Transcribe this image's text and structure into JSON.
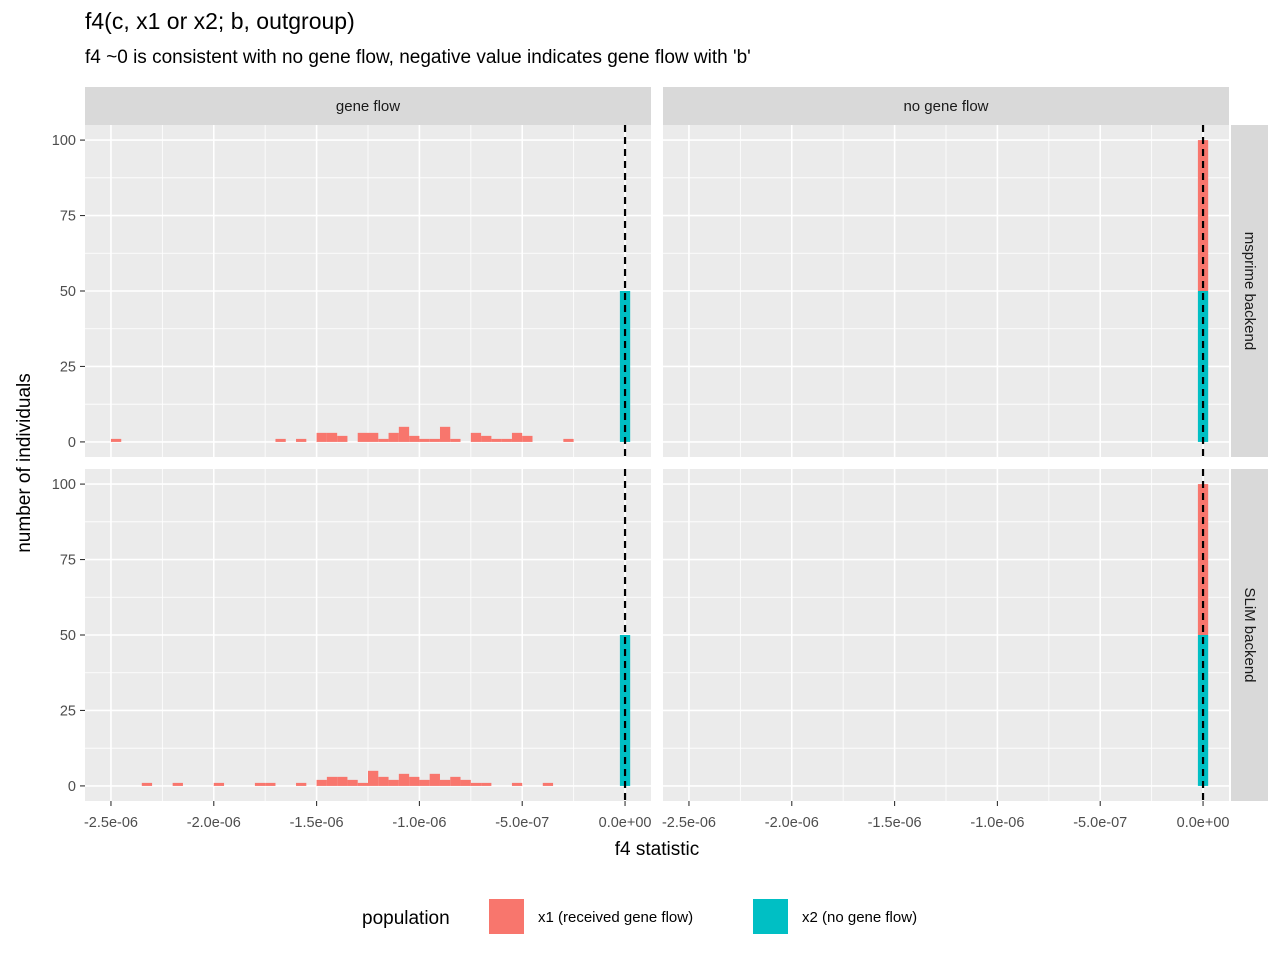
{
  "title": "f4(c, x1 or x2; b, outgroup)",
  "subtitle": "f4 ~0 is consistent with no gene flow, negative value indicates gene flow with 'b'",
  "chart_data": {
    "type": "bar",
    "stacked": true,
    "xlabel": "f4 statistic",
    "ylabel": "number of individuals",
    "xlim": [
      -2.5e-06,
      0
    ],
    "ylim": [
      0,
      100
    ],
    "x_ticks": [
      "-2.5e-06",
      "-2.0e-06",
      "-1.5e-06",
      "-1.0e-06",
      "-5.0e-07",
      "0.0e+00"
    ],
    "y_ticks": [
      "0",
      "25",
      "50",
      "75",
      "100"
    ],
    "column_facets": [
      "gene flow",
      "no gene flow"
    ],
    "row_facets": [
      "msprime backend",
      "SLiM backend"
    ],
    "reference_line_x": 0,
    "bin_width": 5e-08,
    "legend": {
      "title": "population",
      "position": "bottom",
      "entries": [
        {
          "label": "x1 (received gene flow)",
          "color": "#F8766D"
        },
        {
          "label": "x2 (no gene flow)",
          "color": "#00BFC4"
        }
      ]
    },
    "panels": [
      {
        "row": "msprime backend",
        "column": "gene flow",
        "series": [
          {
            "name": "x1 (received gene flow)",
            "x": [
              -2.475e-06,
              -1.675e-06,
              -1.575e-06,
              -1.475e-06,
              -1.425e-06,
              -1.375e-06,
              -1.275e-06,
              -1.225e-06,
              -1.175e-06,
              -1.125e-06,
              -1.075e-06,
              -1.025e-06,
              -9.75e-07,
              -9.25e-07,
              -8.75e-07,
              -8.25e-07,
              -7.25e-07,
              -6.75e-07,
              -6.25e-07,
              -5.75e-07,
              -5.25e-07,
              -4.75e-07,
              -2.75e-07
            ],
            "values": [
              1,
              1,
              1,
              3,
              3,
              2,
              3,
              3,
              1,
              3,
              5,
              2,
              1,
              1,
              5,
              1,
              3,
              2,
              1,
              1,
              3,
              2,
              1
            ]
          },
          {
            "name": "x2 (no gene flow)",
            "x": [
              0
            ],
            "values": [
              50
            ]
          }
        ]
      },
      {
        "row": "msprime backend",
        "column": "no gene flow",
        "series": [
          {
            "name": "x1 (received gene flow)",
            "x": [
              0
            ],
            "values": [
              50
            ]
          },
          {
            "name": "x2 (no gene flow)",
            "x": [
              0
            ],
            "values": [
              50
            ]
          }
        ]
      },
      {
        "row": "SLiM backend",
        "column": "gene flow",
        "series": [
          {
            "name": "x1 (received gene flow)",
            "x": [
              -2.325e-06,
              -2.175e-06,
              -1.975e-06,
              -1.775e-06,
              -1.725e-06,
              -1.575e-06,
              -1.475e-06,
              -1.425e-06,
              -1.375e-06,
              -1.325e-06,
              -1.275e-06,
              -1.225e-06,
              -1.175e-06,
              -1.125e-06,
              -1.075e-06,
              -1.025e-06,
              -9.75e-07,
              -9.25e-07,
              -8.75e-07,
              -8.25e-07,
              -7.75e-07,
              -7.25e-07,
              -6.75e-07,
              -5.25e-07,
              -3.75e-07
            ],
            "values": [
              1,
              1,
              1,
              1,
              1,
              1,
              2,
              3,
              3,
              2,
              1,
              5,
              3,
              2,
              4,
              3,
              2,
              4,
              2,
              3,
              2,
              1,
              1,
              1,
              1
            ]
          },
          {
            "name": "x2 (no gene flow)",
            "x": [
              0
            ],
            "values": [
              50
            ]
          }
        ]
      },
      {
        "row": "SLiM backend",
        "column": "no gene flow",
        "series": [
          {
            "name": "x1 (received gene flow)",
            "x": [
              0
            ],
            "values": [
              50
            ]
          },
          {
            "name": "x2 (no gene flow)",
            "x": [
              0
            ],
            "values": [
              50
            ]
          }
        ]
      }
    ]
  }
}
